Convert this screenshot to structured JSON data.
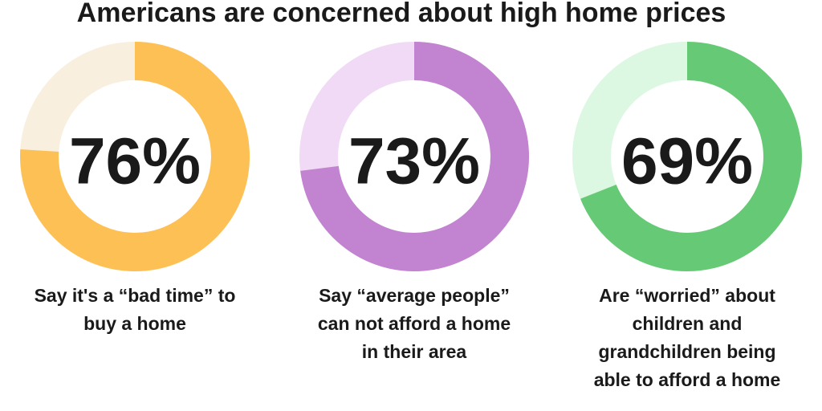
{
  "title": "Americans are concerned about high home prices",
  "chart_data": [
    {
      "type": "donut",
      "values": [
        76
      ],
      "value_labels": [
        "76%"
      ],
      "color": "#fdc055",
      "track_color": "#f8efdf",
      "caption": [
        "Say it's a “bad time” to",
        "buy a home"
      ]
    },
    {
      "type": "donut",
      "values": [
        73
      ],
      "value_labels": [
        "73%"
      ],
      "color": "#c283d0",
      "track_color": "#f1daf5",
      "caption": [
        "Say “average people”",
        "can not afford a home",
        "in their area"
      ]
    },
    {
      "type": "donut",
      "values": [
        69
      ],
      "value_labels": [
        "69%"
      ],
      "color": "#66c975",
      "track_color": "#dcf8e2",
      "caption": [
        "Are “worried” about",
        "children and",
        "grandchildren being",
        "able to afford a home"
      ]
    }
  ]
}
